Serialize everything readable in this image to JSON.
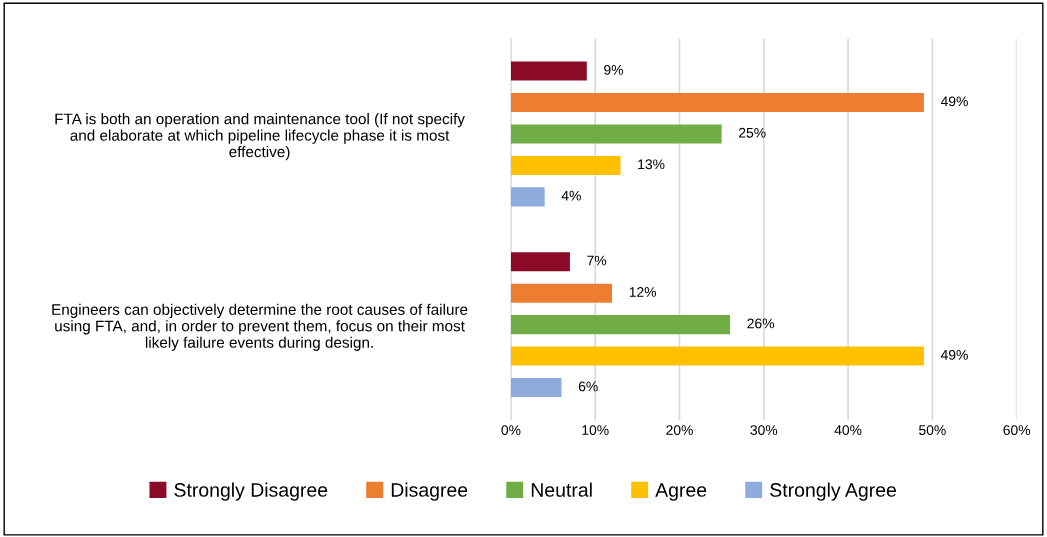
{
  "chart_data": {
    "type": "bar",
    "orientation": "horizontal",
    "categories": [
      "FTA is both an operation and maintenance tool (If not specify\nand elaborate at which pipeline lifecycle phase it is most\neffective)",
      "Engineers can objectively determine the root causes of failure\nusing FTA, and, in order to prevent them, focus on their most\nlikely failure events during design."
    ],
    "series": [
      {
        "name": "Strongly Disagree",
        "color": "#8b0a27",
        "values": [
          9,
          7
        ],
        "value_labels": [
          "9%",
          "7%"
        ]
      },
      {
        "name": "Disagree",
        "color": "#ed7d31",
        "values": [
          49,
          12
        ],
        "value_labels": [
          "49%",
          "12%"
        ]
      },
      {
        "name": "Neutral",
        "color": "#70ad47",
        "values": [
          25,
          26
        ],
        "value_labels": [
          "25%",
          "26%"
        ]
      },
      {
        "name": "Agree",
        "color": "#ffc000",
        "values": [
          13,
          49
        ],
        "value_labels": [
          "13%",
          "49%"
        ]
      },
      {
        "name": "Strongly Agree",
        "color": "#8faadc",
        "values": [
          4,
          6
        ],
        "value_labels": [
          "4%",
          "6%"
        ]
      }
    ],
    "xlim": [
      0,
      60
    ],
    "xticks": [
      {
        "value": 0,
        "label": "0%"
      },
      {
        "value": 10,
        "label": "10%"
      },
      {
        "value": 20,
        "label": "20%"
      },
      {
        "value": 30,
        "label": "30%"
      },
      {
        "value": 40,
        "label": "40%"
      },
      {
        "value": 50,
        "label": "50%"
      },
      {
        "value": 60,
        "label": "60%"
      }
    ],
    "grid": "x",
    "legend": "bottom"
  }
}
